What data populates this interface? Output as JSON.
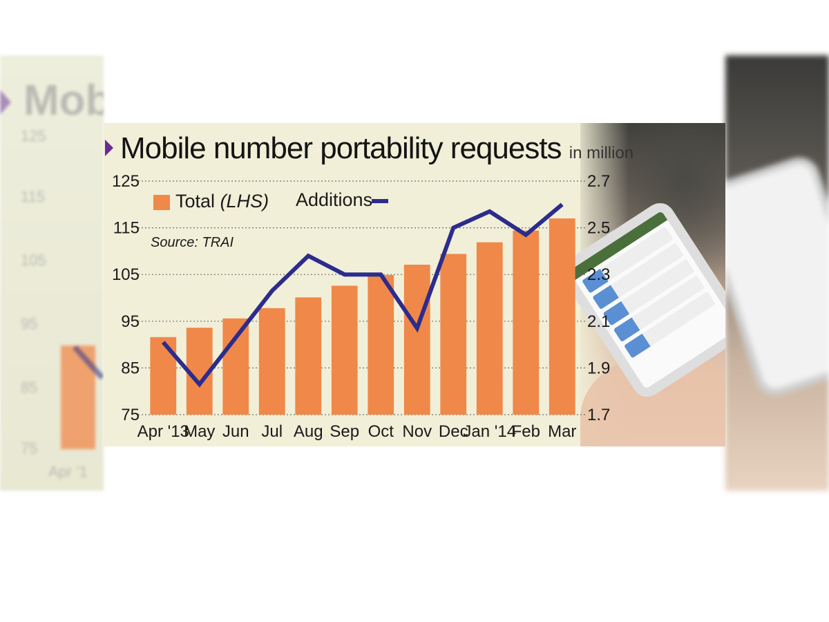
{
  "chart_data": {
    "type": "bar",
    "title": "Mobile number portability requests",
    "title_unit": "in million",
    "source": "Source: TRAI",
    "categories": [
      "Apr '13",
      "May",
      "Jun",
      "Jul",
      "Aug",
      "Sep",
      "Oct",
      "Nov",
      "Dec",
      "Jan '14",
      "Feb",
      "Mar"
    ],
    "series": [
      {
        "name": "Total",
        "name_suffix": "(LHS)",
        "type": "bar",
        "axis": "left",
        "color": "#f0884a",
        "values": [
          91.6,
          93.6,
          95.6,
          97.8,
          100.1,
          102.6,
          104.9,
          107.1,
          109.4,
          111.9,
          114.4,
          117.0
        ]
      },
      {
        "name": "Additions",
        "type": "line",
        "axis": "right",
        "color": "#2c2c8c",
        "values": [
          2.01,
          1.83,
          2.03,
          2.23,
          2.38,
          2.3,
          2.3,
          2.07,
          2.5,
          2.57,
          2.47,
          2.6
        ]
      }
    ],
    "y_left": {
      "min": 75,
      "max": 125,
      "ticks": [
        "125",
        "115",
        "105",
        "95",
        "85",
        "75"
      ],
      "tick_values": [
        125,
        115,
        105,
        95,
        85,
        75
      ]
    },
    "y_right": {
      "min": 1.7,
      "max": 2.7,
      "ticks": [
        "2.7",
        "2.5",
        "2.3",
        "2.1",
        "1.9",
        "1.7"
      ],
      "tick_values": [
        2.7,
        2.5,
        2.3,
        2.1,
        1.9,
        1.7
      ]
    },
    "grid": "dotted-horizontal",
    "legend_position": "top-left"
  },
  "ghost": {
    "left_text": "Mob",
    "left_numbers": [
      "125",
      "115",
      "105",
      "95",
      "85",
      "75"
    ],
    "left_month": "Apr '1"
  }
}
